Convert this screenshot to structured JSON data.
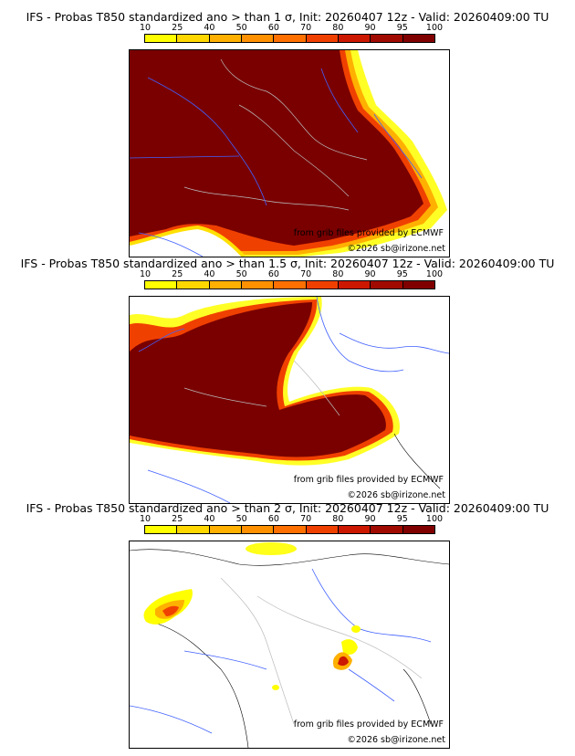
{
  "colorbar": {
    "ticks": [
      "10",
      "25",
      "40",
      "50",
      "60",
      "70",
      "80",
      "90",
      "95",
      "100"
    ],
    "colors": [
      "#ffff00",
      "#ffd700",
      "#ffb000",
      "#ff9000",
      "#ff7000",
      "#f04000",
      "#cc1800",
      "#a00a00",
      "#800000"
    ]
  },
  "panels": [
    {
      "title": "IFS - Probas T850  standardized ano > than 1 σ, Init: 20260407 12z - Valid: 20260409:00 TU",
      "source": "from grib files provided by ECMWF",
      "copyright": "©2026 sb@irizone.net"
    },
    {
      "title": "IFS - Probas T850  standardized ano > than 1.5 σ, Init: 20260407 12z - Valid: 20260409:00 TU",
      "source": "from grib files provided by ECMWF",
      "copyright": "©2026 sb@irizone.net"
    },
    {
      "title": "IFS - Probas T850  standardized ano > than 2 σ, Init: 20260407 12z - Valid: 20260409:00 TU",
      "source": "from grib files provided by ECMWF",
      "copyright": "©2026 sb@irizone.net"
    }
  ]
}
